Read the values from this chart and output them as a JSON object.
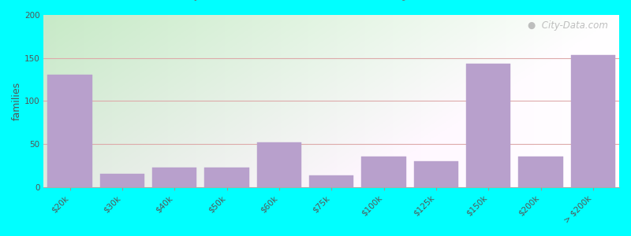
{
  "ylabel": "families",
  "background_color": "#00FFFF",
  "bar_color": "#b8a0cc",
  "title_fontsize": 14,
  "subtitle_fontsize": 10,
  "ylabel_fontsize": 9,
  "tick_fontsize": 7.5,
  "categories": [
    "$20k",
    "$30k",
    "$40k",
    "$50k",
    "$60k",
    "$75k",
    "$100k",
    "$125k",
    "$150k",
    "$200k",
    "> $200k"
  ],
  "values": [
    130,
    15,
    22,
    22,
    52,
    13,
    35,
    30,
    143,
    35,
    153
  ],
  "ylim": [
    0,
    200
  ],
  "yticks": [
    0,
    50,
    100,
    150,
    200
  ],
  "grid_color": "#ddaaaa",
  "watermark": "City-Data.com",
  "subtitle_color": "#5a8080",
  "title_color": "#111111",
  "plot_bg_left": "#c8e8c8",
  "plot_bg_right": "#f0f0f0"
}
